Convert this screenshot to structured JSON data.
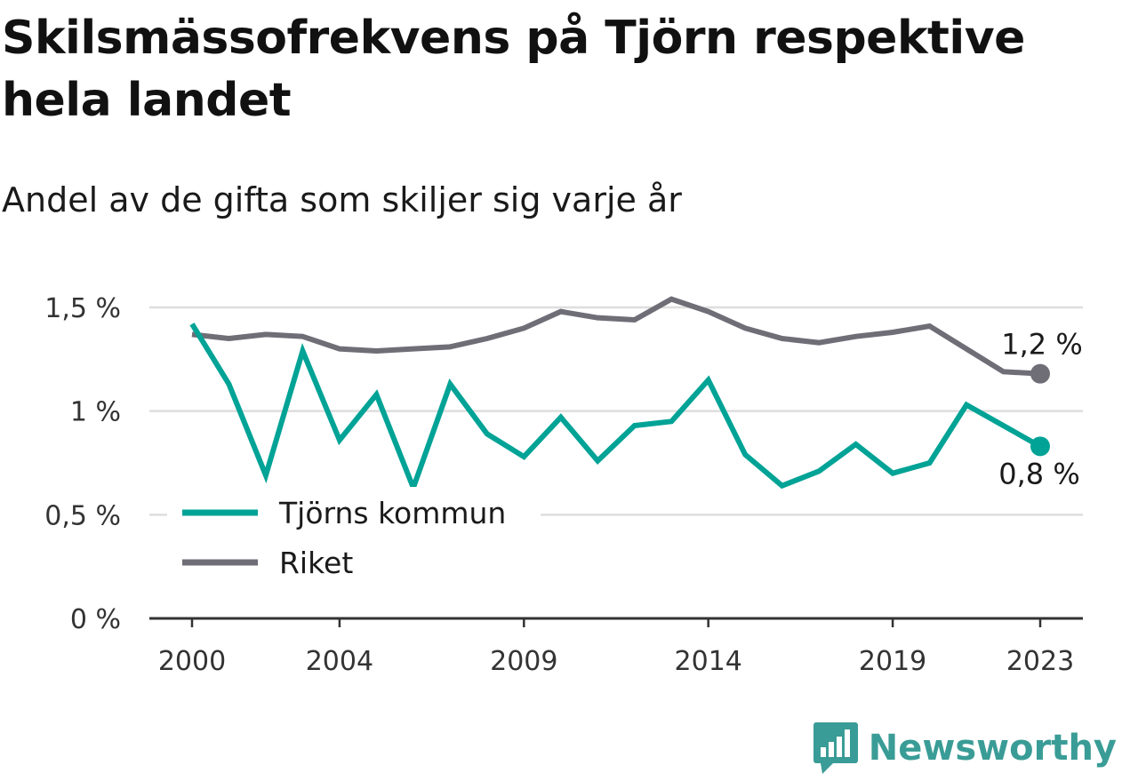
{
  "chart_data": {
    "type": "line",
    "title": "Skilsmässofrekvens på Tjörn respektive hela landet",
    "subtitle": "Andel av de gifta som skiljer sig varje år",
    "x": [
      2000,
      2001,
      2002,
      2003,
      2004,
      2005,
      2006,
      2007,
      2008,
      2009,
      2010,
      2011,
      2012,
      2013,
      2014,
      2015,
      2016,
      2017,
      2018,
      2019,
      2020,
      2021,
      2022,
      2023
    ],
    "x_ticks": [
      2000,
      2004,
      2009,
      2014,
      2019,
      2023
    ],
    "x_tick_labels": [
      "2000",
      "2004",
      "2009",
      "2014",
      "2019",
      "2023"
    ],
    "y_ticks": [
      0,
      0.5,
      1,
      1.5
    ],
    "y_tick_labels": [
      "0 %",
      "0,5 %",
      "1 %",
      "1,5 %"
    ],
    "ylim": [
      0,
      1.5
    ],
    "grid": true,
    "legend_position": "bottom-left",
    "series": [
      {
        "name": "Tjörns kommun",
        "color": "#00a396",
        "values": [
          1.42,
          1.13,
          0.69,
          1.29,
          0.86,
          1.08,
          0.63,
          1.13,
          0.89,
          0.78,
          0.97,
          0.76,
          0.93,
          0.95,
          1.15,
          0.79,
          0.64,
          0.71,
          0.84,
          0.7,
          0.75,
          1.03,
          0.93,
          0.83
        ],
        "end_label": "0,8 %"
      },
      {
        "name": "Riket",
        "color": "#6f6e77",
        "values": [
          1.37,
          1.35,
          1.37,
          1.36,
          1.3,
          1.29,
          1.3,
          1.31,
          1.35,
          1.4,
          1.48,
          1.45,
          1.44,
          1.54,
          1.48,
          1.4,
          1.35,
          1.33,
          1.36,
          1.38,
          1.41,
          1.3,
          1.19,
          1.18
        ],
        "end_label": "1,2 %"
      }
    ]
  },
  "brand": {
    "name": "Newsworthy",
    "color": "#3a9c96",
    "icon": "bar-chart-speech-bubble-icon"
  }
}
